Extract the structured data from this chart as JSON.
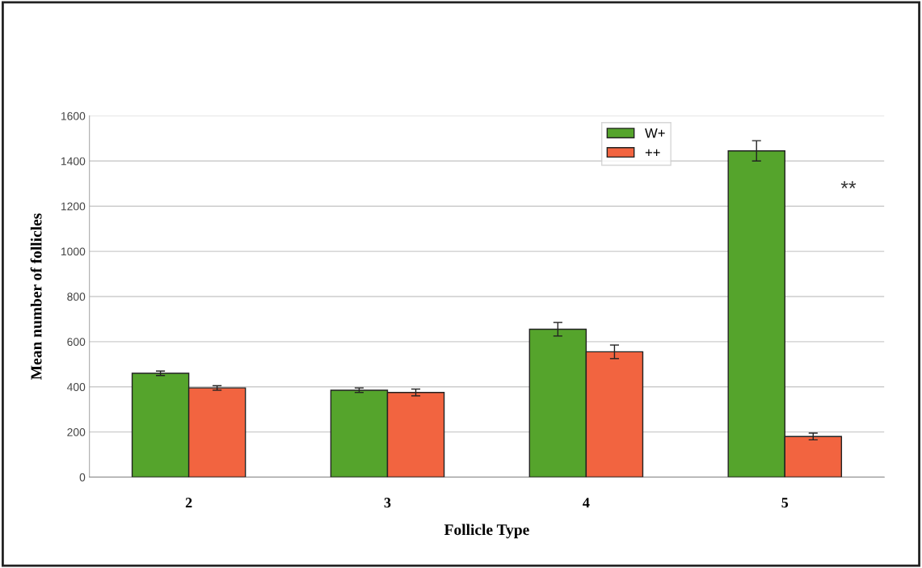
{
  "chart_data": {
    "type": "bar",
    "xlabel": "Follicle Type",
    "ylabel": "Mean number of follicles",
    "categories": [
      "2",
      "3",
      "4",
      "5"
    ],
    "series": [
      {
        "name": "W+",
        "color": "#55a42c",
        "values": [
          460,
          385,
          655,
          1445
        ],
        "errors": [
          10,
          10,
          30,
          45
        ]
      },
      {
        "name": "++",
        "color": "#f26440",
        "values": [
          395,
          375,
          555,
          180
        ],
        "errors": [
          10,
          15,
          30,
          15
        ]
      }
    ],
    "ylim": [
      0,
      1600
    ],
    "yticks": [
      0,
      200,
      400,
      600,
      800,
      1000,
      1200,
      1400,
      1600
    ],
    "grid": "y",
    "legend": "top right",
    "annotations": [
      "**"
    ]
  }
}
